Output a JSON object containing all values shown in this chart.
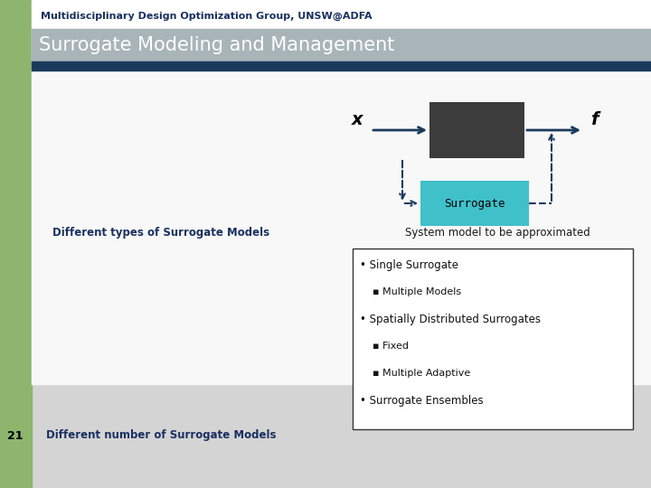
{
  "header_text": "Multidisciplinary Design Optimization Group, UNSW@ADFA",
  "title_text": "Surrogate Modeling and Management",
  "header_bg": "#ffffff",
  "left_bg_top": "#8db56e",
  "left_bg_bot": "#8db56e",
  "main_bg": "#d4d4d4",
  "title_bg": "#a8b4b8",
  "dark_bar_color": "#1a3a5c",
  "label1": "Different types of Surrogate Models",
  "label2": "System model to be approximated",
  "label3": "Different number of Surrogate Models",
  "page_num": "21",
  "bullet_items": [
    {
      "text": "Single Surrogate",
      "level": 0
    },
    {
      "text": "Multiple Models",
      "level": 1
    },
    {
      "text": "Spatially Distributed Surrogates",
      "level": 0
    },
    {
      "text": "Fixed",
      "level": 1
    },
    {
      "text": "Multiple Adaptive",
      "level": 1
    },
    {
      "text": "Surrogate Ensembles",
      "level": 0
    }
  ],
  "box_dark_color": "#3c3c3c",
  "box_cyan_color": "#40c0c8",
  "arrow_color": "#1a3a5c",
  "arrow_dashed_color": "#1a3a5c",
  "white_area_bg": "#f8f8f8"
}
